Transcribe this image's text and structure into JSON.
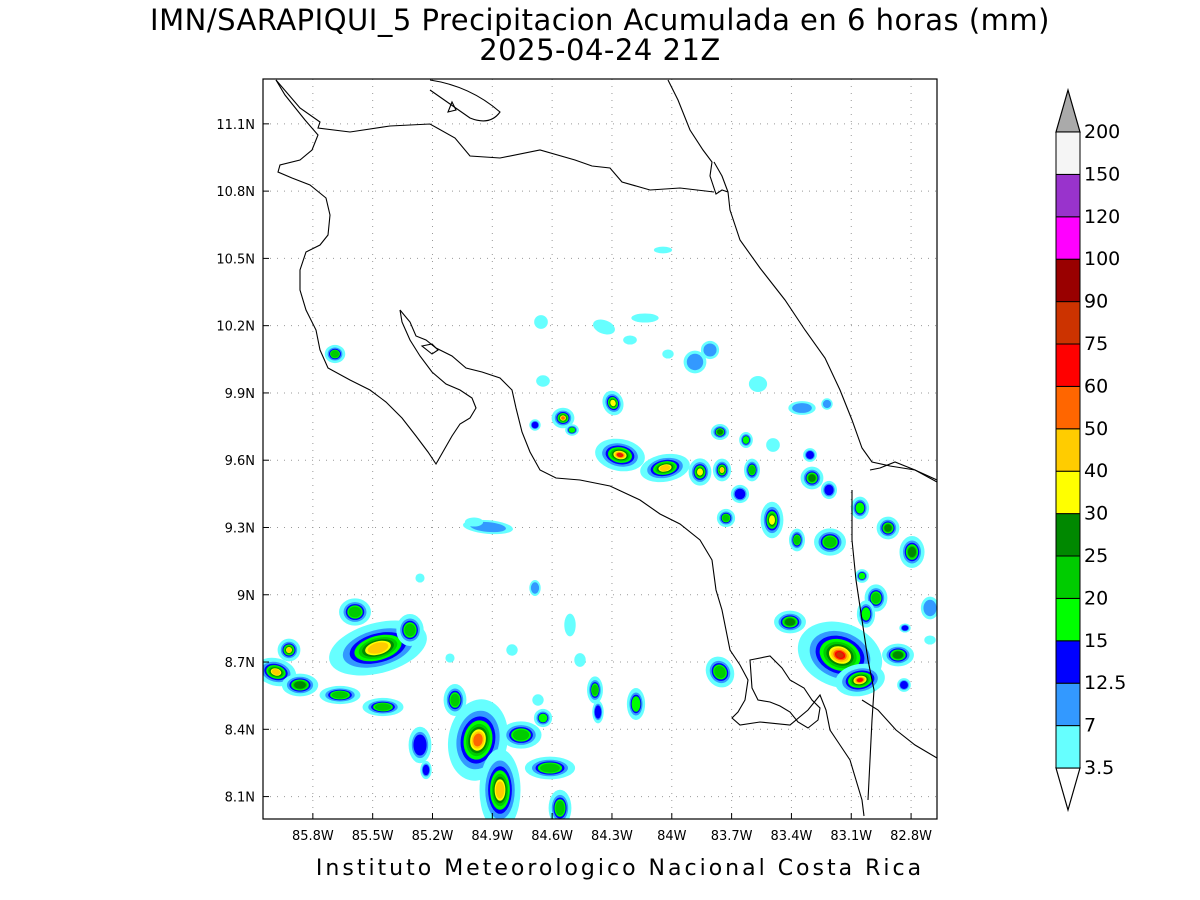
{
  "title": "IMN/SARAPIQUI_5 Precipitacion Acumulada en 6 horas (mm)",
  "subtitle": "2025-04-24 21Z",
  "footer": "Instituto Meteorologico Nacional Costa Rica",
  "map": {
    "lon_range": [
      -86.05,
      -82.67
    ],
    "lat_range": [
      8.0,
      11.3
    ],
    "lon_ticks": [
      {
        "value": -85.8,
        "label": "85.8W"
      },
      {
        "value": -85.5,
        "label": "85.5W"
      },
      {
        "value": -85.2,
        "label": "85.2W"
      },
      {
        "value": -84.9,
        "label": "84.9W"
      },
      {
        "value": -84.6,
        "label": "84.6W"
      },
      {
        "value": -84.3,
        "label": "84.3W"
      },
      {
        "value": -84.0,
        "label": "84W"
      },
      {
        "value": -83.7,
        "label": "83.7W"
      },
      {
        "value": -83.4,
        "label": "83.4W"
      },
      {
        "value": -83.1,
        "label": "83.1W"
      },
      {
        "value": -82.8,
        "label": "82.8W"
      }
    ],
    "lat_ticks": [
      {
        "value": 11.1,
        "label": "11.1N"
      },
      {
        "value": 10.8,
        "label": "10.8N"
      },
      {
        "value": 10.5,
        "label": "10.5N"
      },
      {
        "value": 10.2,
        "label": "10.2N"
      },
      {
        "value": 9.9,
        "label": "9.9N"
      },
      {
        "value": 9.6,
        "label": "9.6N"
      },
      {
        "value": 9.3,
        "label": "9.3N"
      },
      {
        "value": 9.0,
        "label": "9N"
      },
      {
        "value": 8.7,
        "label": "8.7N"
      },
      {
        "value": 8.4,
        "label": "8.4N"
      },
      {
        "value": 8.1,
        "label": "8.1N"
      }
    ],
    "grid": true
  },
  "colorbar": {
    "levels": [
      {
        "label": "3.5",
        "color": "#66ffff"
      },
      {
        "label": "7",
        "color": "#3399ff"
      },
      {
        "label": "12.5",
        "color": "#0000ff"
      },
      {
        "label": "15",
        "color": "#00ff00"
      },
      {
        "label": "20",
        "color": "#00cc00"
      },
      {
        "label": "25",
        "color": "#008800"
      },
      {
        "label": "30",
        "color": "#ffff00"
      },
      {
        "label": "40",
        "color": "#ffcc00"
      },
      {
        "label": "50",
        "color": "#ff6600"
      },
      {
        "label": "60",
        "color": "#ff0000"
      },
      {
        "label": "75",
        "color": "#cc3300"
      },
      {
        "label": "90",
        "color": "#990000"
      },
      {
        "label": "100",
        "color": "#ff00ff"
      },
      {
        "label": "120",
        "color": "#9933cc"
      },
      {
        "label": "150",
        "color": "#f5f5f5"
      },
      {
        "label": "200",
        "color": null
      }
    ],
    "top_triangle_color": "#aaaaaa",
    "bottom_triangle_color": "#ffffff"
  },
  "chart_data": {
    "type": "heatmap",
    "title": "IMN/SARAPIQUI_5 Precipitacion Acumulada en 6 horas (mm)",
    "subtitle": "2025-04-24 21Z",
    "units": "mm",
    "xlim": [
      -86.05,
      -82.67
    ],
    "ylim": [
      8.0,
      11.3
    ],
    "cells": [
      {
        "lon": -84.18,
        "lat": 9.63,
        "level": 75
      },
      {
        "lon": -84.1,
        "lat": 9.62,
        "level": 40
      },
      {
        "lon": -83.92,
        "lat": 9.57,
        "level": 40
      },
      {
        "lon": -83.71,
        "lat": 9.55,
        "level": 30
      },
      {
        "lon": -84.95,
        "lat": 8.35,
        "level": 50
      },
      {
        "lon": -84.83,
        "lat": 8.1,
        "level": 40
      },
      {
        "lon": -85.25,
        "lat": 8.76,
        "level": 40
      },
      {
        "lon": -85.97,
        "lat": 8.7,
        "level": 40
      },
      {
        "lon": -82.93,
        "lat": 8.72,
        "level": 60
      },
      {
        "lon": -82.9,
        "lat": 8.62,
        "level": 50
      },
      {
        "lon": -83.37,
        "lat": 9.3,
        "level": 30
      },
      {
        "lon": -82.74,
        "lat": 9.19,
        "level": 30
      },
      {
        "lon": -84.55,
        "lat": 9.79,
        "level": 40
      },
      {
        "lon": -84.27,
        "lat": 9.87,
        "level": 30
      }
    ]
  }
}
